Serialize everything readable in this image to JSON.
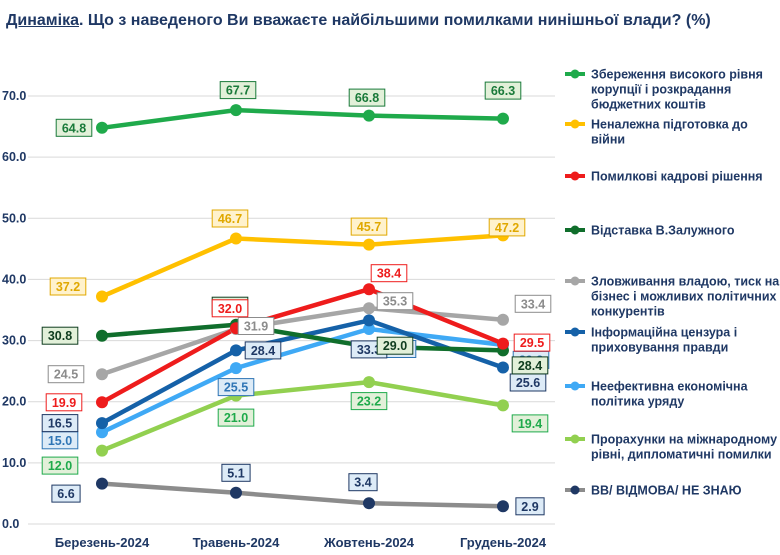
{
  "title": {
    "lead": "Динаміка",
    "rest": ". Що з наведеного Ви вважаєте найбільшими помилками нинішньої влади? (%)"
  },
  "chart_data": {
    "type": "line",
    "categories": [
      "Березень-2024",
      "Травень-2024",
      "Жовтень-2024",
      "Грудень-2024"
    ],
    "y_ticks": [
      "0.0",
      "10.0",
      "20.0",
      "30.0",
      "40.0",
      "50.0",
      "60.0",
      "70.0"
    ],
    "ylim": [
      0,
      75
    ],
    "grid": "horizontal",
    "legend_position": "right",
    "series": [
      {
        "name": "Збереження високого рівня корупції і розкрадання бюджетних коштів",
        "legend_lines": [
          "Збереження високого рівня",
          "корупції і розкрадання",
          "бюджетних коштів"
        ],
        "color": "#1faa4b",
        "label_fill": "#e2f0d9",
        "label_text": "#1a7a3a",
        "values": [
          64.8,
          67.7,
          66.8,
          66.3
        ]
      },
      {
        "name": "Неналежна підготовка до війни",
        "legend_lines": [
          "Неналежна підготовка до",
          "війни"
        ],
        "color": "#ffc000",
        "label_fill": "#fff2cc",
        "label_text": "#e0a800",
        "values": [
          37.2,
          46.7,
          45.7,
          47.2
        ]
      },
      {
        "name": "Помилкові кадрові рішення",
        "legend_lines": [
          "Помилкові кадрові рішення"
        ],
        "color": "#ee1c1c",
        "label_fill": "#ffffff",
        "label_text": "#ee1c1c",
        "values": [
          19.9,
          32.0,
          38.4,
          29.5
        ]
      },
      {
        "name": "Відставка В.Залужного",
        "legend_lines": [
          "Відставка В.Залужного"
        ],
        "color": "#106e2c",
        "label_fill": "#e2f0d9",
        "label_text": "#0f3d1f",
        "values": [
          30.8,
          32.6,
          29.0,
          28.4
        ]
      },
      {
        "name": "Зловживання владою, тиск на бізнес і можливих політичних конкурентів",
        "legend_lines": [
          "Зловживання владою, тиск на",
          "бізнес і можливих політичних",
          "конкурентів"
        ],
        "color": "#a6a6a6",
        "label_fill": "#ffffff",
        "label_text": "#8c8c8c",
        "values": [
          24.5,
          31.9,
          35.3,
          33.4
        ]
      },
      {
        "name": "Інформаційна цензура і приховування правди",
        "legend_lines": [
          "Інформаційна цензура і",
          "приховування правди"
        ],
        "color": "#1561a8",
        "label_fill": "#ddebf7",
        "label_text": "#1f3864",
        "values": [
          16.5,
          28.4,
          33.3,
          25.6
        ]
      },
      {
        "name": "Неефективна економічна політика уряду",
        "legend_lines": [
          "Неефективна економічна",
          "політика уряду"
        ],
        "color": "#3fa9f5",
        "label_fill": "#ddebf7",
        "label_text": "#2f75b5",
        "values": [
          15.0,
          25.5,
          31.9,
          29.3
        ]
      },
      {
        "name": "Прорахунки на міжнародному рівні, дипломатичні помилки",
        "legend_lines": [
          "Прорахунки на міжнародному",
          "рівні, дипломатичні помилки"
        ],
        "color": "#92d050",
        "label_fill": "#e2f0d9",
        "label_text": "#1faa4b",
        "values": [
          12.0,
          21.0,
          23.2,
          19.4
        ]
      },
      {
        "name": "ВВ/ ВІДМОВА/ НЕ ЗНАЮ",
        "legend_lines": [
          "ВВ/ ВІДМОВА/ НЕ ЗНАЮ"
        ],
        "color": "#8c8c8c",
        "marker_color": "#1f3864",
        "label_fill": "#ddebf7",
        "label_text": "#1f3864",
        "values": [
          6.6,
          5.1,
          3.4,
          2.9
        ]
      }
    ]
  }
}
